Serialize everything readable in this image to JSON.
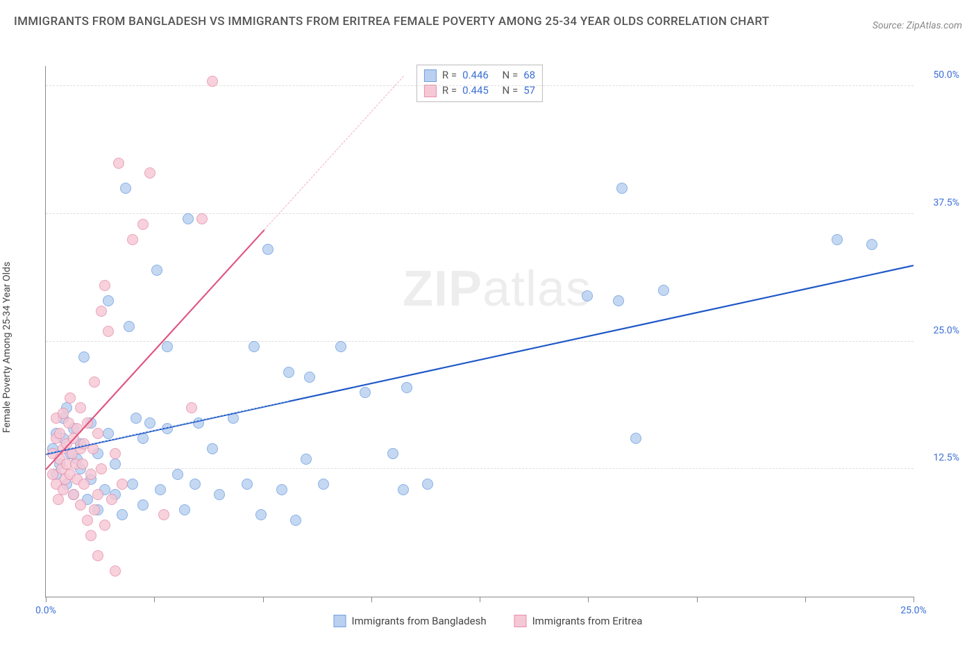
{
  "title": "IMMIGRANTS FROM BANGLADESH VS IMMIGRANTS FROM ERITREA FEMALE POVERTY AMONG 25-34 YEAR OLDS CORRELATION CHART",
  "source": "Source: ZipAtlas.com",
  "watermark_a": "ZIP",
  "watermark_b": "atlas",
  "ylabel": "Female Poverty Among 25-34 Year Olds",
  "chart": {
    "type": "scatter",
    "xlim": [
      0,
      25
    ],
    "ylim": [
      0,
      52
    ],
    "xticks": [
      0,
      3.125,
      6.25,
      9.375,
      12.5,
      15.625,
      18.75,
      21.875,
      25
    ],
    "xlabels": [
      {
        "v": 0,
        "t": "0.0%"
      },
      {
        "v": 25,
        "t": "25.0%"
      }
    ],
    "yticks": [
      {
        "v": 12.5,
        "t": "12.5%"
      },
      {
        "v": 25.0,
        "t": "25.0%"
      },
      {
        "v": 37.5,
        "t": "37.5%"
      },
      {
        "v": 50.0,
        "t": "50.0%"
      }
    ],
    "grid_color": "#dddddd",
    "axis_color": "#888888",
    "background": "#ffffff",
    "marker_radius": 8,
    "series": [
      {
        "name": "Immigrants from Bangladesh",
        "fill": "#b9d0f0",
        "stroke": "#6f9fe0",
        "line_color": "#1f58c7",
        "dash_color": "#b9d0f0",
        "R": "0.446",
        "N": "68",
        "trend": {
          "x1": 0,
          "y1": 14.0,
          "x2": 25,
          "y2": 32.5
        },
        "trend_ext": {
          "x1": 0,
          "y1": 14.0,
          "x2": 7.0,
          "y2": 19.2
        },
        "points": [
          [
            0.2,
            14.5
          ],
          [
            0.3,
            12.0
          ],
          [
            0.3,
            16.0
          ],
          [
            0.4,
            13.0
          ],
          [
            0.5,
            15.5
          ],
          [
            0.5,
            17.5
          ],
          [
            0.6,
            11.0
          ],
          [
            0.6,
            18.5
          ],
          [
            0.7,
            14.0
          ],
          [
            0.8,
            10.0
          ],
          [
            0.8,
            16.5
          ],
          [
            0.9,
            13.5
          ],
          [
            1.0,
            12.5
          ],
          [
            1.0,
            15.0
          ],
          [
            1.1,
            23.5
          ],
          [
            1.2,
            9.5
          ],
          [
            1.3,
            17.0
          ],
          [
            1.3,
            11.5
          ],
          [
            1.5,
            8.5
          ],
          [
            1.5,
            14.0
          ],
          [
            1.7,
            10.5
          ],
          [
            1.8,
            29.0
          ],
          [
            1.8,
            16.0
          ],
          [
            2.0,
            10.0
          ],
          [
            2.0,
            13.0
          ],
          [
            2.2,
            8.0
          ],
          [
            2.3,
            40.0
          ],
          [
            2.4,
            26.5
          ],
          [
            2.5,
            11.0
          ],
          [
            2.6,
            17.5
          ],
          [
            2.8,
            9.0
          ],
          [
            2.8,
            15.5
          ],
          [
            3.0,
            17.0
          ],
          [
            3.2,
            32.0
          ],
          [
            3.3,
            10.5
          ],
          [
            3.5,
            16.5
          ],
          [
            3.5,
            24.5
          ],
          [
            3.8,
            12.0
          ],
          [
            4.0,
            8.5
          ],
          [
            4.1,
            37.0
          ],
          [
            4.3,
            11.0
          ],
          [
            4.4,
            17.0
          ],
          [
            4.8,
            14.5
          ],
          [
            5.0,
            10.0
          ],
          [
            5.4,
            17.5
          ],
          [
            5.8,
            11.0
          ],
          [
            6.0,
            24.5
          ],
          [
            6.2,
            8.0
          ],
          [
            6.4,
            34.0
          ],
          [
            6.8,
            10.5
          ],
          [
            7.0,
            22.0
          ],
          [
            7.5,
            13.5
          ],
          [
            7.6,
            21.5
          ],
          [
            8.0,
            11.0
          ],
          [
            8.5,
            24.5
          ],
          [
            9.2,
            20.0
          ],
          [
            10.0,
            14.0
          ],
          [
            10.3,
            10.5
          ],
          [
            10.4,
            20.5
          ],
          [
            11.0,
            11.0
          ],
          [
            15.6,
            29.5
          ],
          [
            16.5,
            29.0
          ],
          [
            16.6,
            40.0
          ],
          [
            17.0,
            15.5
          ],
          [
            17.8,
            30.0
          ],
          [
            22.8,
            35.0
          ],
          [
            23.8,
            34.5
          ],
          [
            7.2,
            7.5
          ]
        ]
      },
      {
        "name": "Immigrants from Eritrea",
        "fill": "#f6c8d5",
        "stroke": "#e78fab",
        "line_color": "#e0557f",
        "dash_color": "#f3b8c9",
        "R": "0.445",
        "N": "57",
        "trend": {
          "x1": 0,
          "y1": 12.5,
          "x2": 6.3,
          "y2": 36.0
        },
        "trend_ext": {
          "x1": 6.3,
          "y1": 36.0,
          "x2": 10.3,
          "y2": 51.0
        },
        "points": [
          [
            0.2,
            12.0
          ],
          [
            0.2,
            14.0
          ],
          [
            0.3,
            11.0
          ],
          [
            0.3,
            15.5
          ],
          [
            0.3,
            17.5
          ],
          [
            0.35,
            9.5
          ],
          [
            0.4,
            13.5
          ],
          [
            0.4,
            16.0
          ],
          [
            0.45,
            12.5
          ],
          [
            0.5,
            10.5
          ],
          [
            0.5,
            14.5
          ],
          [
            0.5,
            18.0
          ],
          [
            0.55,
            11.5
          ],
          [
            0.6,
            13.0
          ],
          [
            0.6,
            15.0
          ],
          [
            0.65,
            17.0
          ],
          [
            0.7,
            12.0
          ],
          [
            0.7,
            19.5
          ],
          [
            0.75,
            14.0
          ],
          [
            0.8,
            10.0
          ],
          [
            0.8,
            15.5
          ],
          [
            0.85,
            13.0
          ],
          [
            0.9,
            16.5
          ],
          [
            0.9,
            11.5
          ],
          [
            1.0,
            9.0
          ],
          [
            1.0,
            14.5
          ],
          [
            1.0,
            18.5
          ],
          [
            1.05,
            13.0
          ],
          [
            1.1,
            11.0
          ],
          [
            1.1,
            15.0
          ],
          [
            1.2,
            7.5
          ],
          [
            1.2,
            17.0
          ],
          [
            1.3,
            6.0
          ],
          [
            1.3,
            12.0
          ],
          [
            1.35,
            14.5
          ],
          [
            1.4,
            8.5
          ],
          [
            1.4,
            21.0
          ],
          [
            1.5,
            4.0
          ],
          [
            1.5,
            10.0
          ],
          [
            1.5,
            16.0
          ],
          [
            1.6,
            28.0
          ],
          [
            1.6,
            12.5
          ],
          [
            1.7,
            7.0
          ],
          [
            1.7,
            30.5
          ],
          [
            1.8,
            26.0
          ],
          [
            1.9,
            9.5
          ],
          [
            2.0,
            2.5
          ],
          [
            2.0,
            14.0
          ],
          [
            2.1,
            42.5
          ],
          [
            2.2,
            11.0
          ],
          [
            2.5,
            35.0
          ],
          [
            2.8,
            36.5
          ],
          [
            3.0,
            41.5
          ],
          [
            3.4,
            8.0
          ],
          [
            4.2,
            18.5
          ],
          [
            4.8,
            50.5
          ],
          [
            4.5,
            37.0
          ]
        ]
      }
    ],
    "legend": {
      "series1": "Immigrants from Bangladesh",
      "series2": "Immigrants from Eritrea"
    },
    "stats_labels": {
      "R": "R =",
      "N": "N ="
    }
  }
}
